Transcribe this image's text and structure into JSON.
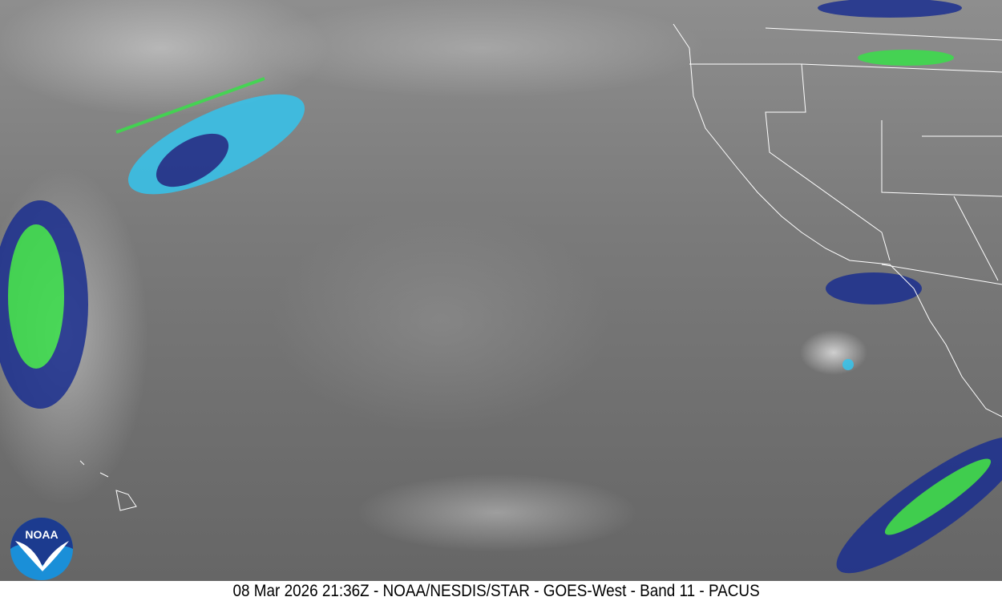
{
  "caption": "08 Mar 2026 21:36Z - NOAA/NESDIS/STAR - GOES-West - Band 11 - PACUS",
  "logo": {
    "text": "NOAA",
    "colors": {
      "top": "#1c3b8f",
      "bottom": "#1a8fd8"
    }
  },
  "colors": {
    "cold_cloud_cyan": "#35c4ee",
    "deep_blue": "#1b2f8f",
    "green": "#39e04a",
    "border_lines": "#ffffff"
  }
}
